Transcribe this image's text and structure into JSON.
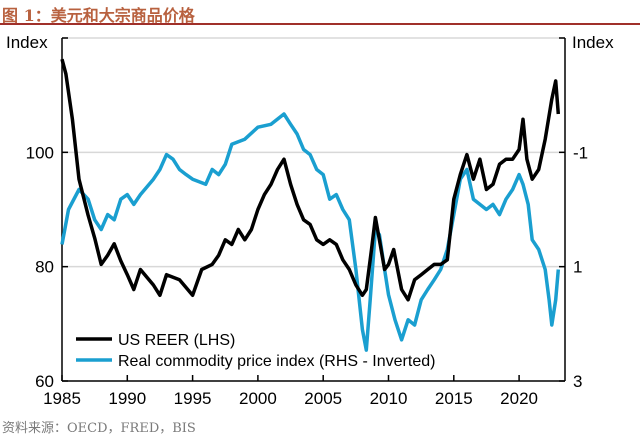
{
  "title": "图 1：美元和大宗商品价格",
  "source": "资料来源：OECD，FRED，BIS",
  "chart_data": {
    "type": "line",
    "title": "图 1：美元和大宗商品价格",
    "left_axis": {
      "label": "Index",
      "ylim": [
        60,
        120
      ],
      "ticks": [
        "60",
        "80",
        "100"
      ]
    },
    "right_axis": {
      "label": "Index",
      "ylim": [
        3,
        -3
      ],
      "inverted": true,
      "ticks": [
        "-1",
        "1",
        "3"
      ]
    },
    "x_axis": {
      "xlim": [
        1985,
        2023.5
      ],
      "ticks": [
        "1985",
        "1990",
        "1995",
        "2000",
        "2005",
        "2010",
        "2015",
        "2020"
      ]
    },
    "grid": "horizontal at 80 and 100",
    "legend_position": "bottom-left",
    "colors": {
      "reer": "#000000",
      "commodity": "#1a9fd0",
      "title": "#b8613f",
      "rule": "#a0302a"
    },
    "series": [
      {
        "name": "US REER (LHS)",
        "axis": "left",
        "x": [
          1985,
          1985.3,
          1985.8,
          1986.3,
          1987,
          1987.5,
          1988,
          1988.5,
          1989,
          1989.5,
          1990,
          1990.5,
          1991,
          1992,
          1992.5,
          1993,
          1994,
          1995,
          1995.7,
          1996.5,
          1997,
          1997.5,
          1998,
          1998.5,
          1999,
          1999.5,
          2000,
          2000.5,
          2001,
          2001.5,
          2002,
          2002.5,
          2003,
          2003.5,
          2004,
          2004.5,
          2005,
          2005.5,
          2006,
          2006.5,
          2007,
          2007.5,
          2008,
          2008.3,
          2008.7,
          2009,
          2009.3,
          2009.7,
          2010,
          2010.4,
          2011,
          2011.5,
          2012,
          2012.5,
          2013,
          2013.5,
          2014,
          2014.5,
          2015,
          2015.5,
          2016,
          2016.5,
          2017,
          2017.5,
          2018,
          2018.5,
          2019,
          2019.5,
          2020,
          2020.3,
          2020.6,
          2021,
          2021.5,
          2022,
          2022.5,
          2022.8,
          2023
        ],
        "y": [
          116.3,
          113.7,
          105.8,
          95.3,
          89,
          85,
          80.4,
          82,
          84,
          81,
          78.6,
          76,
          79.5,
          76.8,
          75,
          78.6,
          77.7,
          75,
          79.5,
          80.4,
          82,
          84.7,
          83.9,
          86.5,
          84.7,
          86.5,
          90,
          92.6,
          94.4,
          97,
          98.8,
          94.4,
          90.9,
          88.2,
          87.4,
          84.7,
          83.9,
          84.7,
          83.9,
          81.2,
          79.5,
          76.8,
          75,
          76,
          83,
          88.6,
          84.7,
          79.5,
          80.4,
          83,
          76,
          74.2,
          77.7,
          78.6,
          79.5,
          80.4,
          80.4,
          81.2,
          91.8,
          96.1,
          99.6,
          95.3,
          98.8,
          93.5,
          94.4,
          97.9,
          98.8,
          98.8,
          100.5,
          105.8,
          98.8,
          95.3,
          97,
          102.3,
          109.3,
          112.5,
          106.7
        ]
      },
      {
        "name": "Real commodity price index (RHS - Inverted)",
        "axis": "right",
        "x": [
          1985,
          1985.5,
          1986.3,
          1987,
          1987.5,
          1988,
          1988.5,
          1989,
          1989.5,
          1990,
          1990.5,
          1991,
          1992,
          1992.5,
          1993,
          1993.5,
          1994,
          1994.5,
          1995,
          1996,
          1996.5,
          1997,
          1997.5,
          1998,
          1999,
          2000,
          2001,
          2002,
          2002.5,
          2003,
          2003.5,
          2004,
          2004.5,
          2005,
          2005.5,
          2006,
          2006.5,
          2007,
          2007.5,
          2008,
          2008.3,
          2008.6,
          2009,
          2009.3,
          2009.7,
          2010,
          2010.5,
          2011,
          2011.5,
          2012,
          2012.5,
          2013,
          2013.5,
          2014,
          2014.5,
          2015,
          2015.5,
          2016,
          2016.5,
          2017,
          2017.5,
          2018,
          2018.5,
          2019,
          2019.5,
          2020,
          2020.3,
          2020.7,
          2021,
          2021.5,
          2022,
          2022.3,
          2022.5,
          2022.8,
          2023
        ],
        "y": [
          0.61,
          0,
          -0.35,
          -0.18,
          0.18,
          0.35,
          0.09,
          0.18,
          -0.18,
          -0.26,
          -0.09,
          -0.26,
          -0.53,
          -0.7,
          -0.96,
          -0.88,
          -0.7,
          -0.61,
          -0.53,
          -0.44,
          -0.7,
          -0.61,
          -0.79,
          -1.14,
          -1.23,
          -1.44,
          -1.49,
          -1.67,
          -1.49,
          -1.32,
          -1.05,
          -0.96,
          -0.7,
          -0.61,
          -0.18,
          -0.26,
          0,
          0.18,
          1.05,
          2.1,
          2.46,
          1.58,
          0.35,
          0.44,
          1.05,
          1.49,
          1.93,
          2.28,
          1.93,
          2.02,
          1.58,
          1.4,
          1.23,
          1.05,
          0.7,
          0.09,
          -0.53,
          -0.7,
          -0.18,
          -0.09,
          0,
          -0.09,
          0.09,
          -0.18,
          -0.35,
          -0.61,
          -0.44,
          -0.09,
          0.53,
          0.7,
          1.05,
          1.58,
          2.02,
          1.58,
          1.05
        ]
      }
    ]
  }
}
